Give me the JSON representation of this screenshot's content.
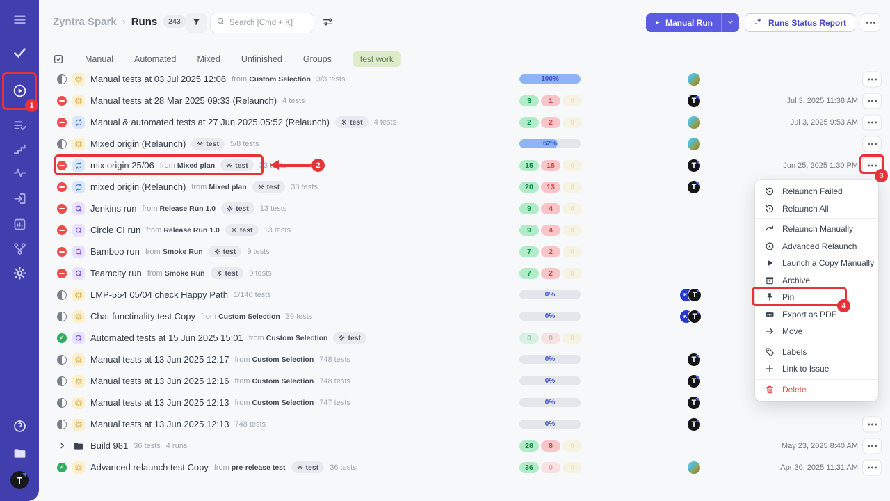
{
  "labels": {
    "from": "from"
  },
  "sidebar": {
    "icons": [
      {
        "name": "menu"
      },
      {
        "name": "check",
        "bright": true
      },
      {
        "name": "play-circle",
        "active": true
      },
      {
        "name": "checklist"
      },
      {
        "name": "steps"
      },
      {
        "name": "pulse"
      },
      {
        "name": "sign-in"
      },
      {
        "name": "bar-chart"
      },
      {
        "name": "branch"
      },
      {
        "name": "gear",
        "bright": true
      }
    ],
    "footer": [
      {
        "name": "help"
      },
      {
        "name": "folder"
      }
    ],
    "avatar_initial": "T"
  },
  "header": {
    "project": "Zyntra Spark",
    "separator": "›",
    "page": "Runs",
    "count": "243",
    "search_placeholder": "Search [Cmd + K]",
    "manual_run_label": "Manual Run",
    "report_label": "Runs Status Report"
  },
  "tabs": {
    "items": [
      "Manual",
      "Automated",
      "Mixed",
      "Unfinished",
      "Groups"
    ],
    "tag": "test work"
  },
  "rows": [
    {
      "status": "in-progress",
      "type": "manual",
      "title": "Manual tests at 03 Jul 2025 12:08",
      "from": "Custom Selection",
      "tag": "",
      "tests": "3/3 tests",
      "tests2": "",
      "progress": {
        "kind": "bar",
        "pct": 100,
        "label": "100%"
      },
      "avatars": [
        "photo"
      ],
      "time": "",
      "more": true
    },
    {
      "status": "failed",
      "type": "manual",
      "title": "Manual tests at 28 Mar 2025 09:33 (Relaunch)",
      "from": "",
      "tag": "",
      "tests": "4 tests",
      "tests2": "",
      "progress": {
        "kind": "pills",
        "values": [
          "3",
          "1",
          "0"
        ]
      },
      "avatars": [
        "T"
      ],
      "time": "Jul 3, 2025 11:38 AM",
      "more": true
    },
    {
      "status": "failed",
      "type": "mixed",
      "title": "Manual & automated tests at 27 Jun 2025 05:52 (Relaunch)",
      "from": "",
      "tag": "test",
      "tests": "4 tests",
      "tests2": "",
      "progress": {
        "kind": "pills",
        "values": [
          "2",
          "2",
          "0"
        ]
      },
      "avatars": [
        "photo"
      ],
      "time": "Jul 3, 2025 9:53 AM",
      "more": true
    },
    {
      "status": "in-progress",
      "type": "manual",
      "title": "Mixed origin (Relaunch)",
      "from": "",
      "tag": "test",
      "tests": "5/8 tests",
      "tests2": "",
      "progress": {
        "kind": "bar",
        "pct": 62,
        "label": "62%"
      },
      "avatars": [
        "photo"
      ],
      "time": "",
      "more": true
    },
    {
      "status": "failed",
      "type": "mixed",
      "title": "mix origin 25/06",
      "from": "Mixed plan",
      "tag": "test",
      "tests": "33 tests",
      "tests2": "",
      "progress": {
        "kind": "pills",
        "values": [
          "15",
          "18",
          "0"
        ]
      },
      "avatars": [
        "T"
      ],
      "time": "Jun 25, 2025 1:30 PM",
      "more": true
    },
    {
      "status": "failed",
      "type": "mixed",
      "title": "mixed origin (Relaunch)",
      "from": "Mixed plan",
      "tag": "test",
      "tests": "33 tests",
      "tests2": "",
      "progress": {
        "kind": "pills",
        "values": [
          "20",
          "13",
          "0"
        ]
      },
      "avatars": [
        "T"
      ],
      "time": "",
      "more": false
    },
    {
      "status": "failed",
      "type": "automated",
      "title": "Jenkins run",
      "from": "Release Run 1.0",
      "tag": "test",
      "tests": "13 tests",
      "tests2": "",
      "progress": {
        "kind": "pills",
        "values": [
          "9",
          "4",
          "0"
        ]
      },
      "avatars": [],
      "time": "",
      "more": false
    },
    {
      "status": "failed",
      "type": "automated",
      "title": "Circle CI run",
      "from": "Release Run 1.0",
      "tag": "test",
      "tests": "13 tests",
      "tests2": "",
      "progress": {
        "kind": "pills",
        "values": [
          "9",
          "4",
          "0"
        ]
      },
      "avatars": [],
      "time": "",
      "more": false
    },
    {
      "status": "failed",
      "type": "automated",
      "title": "Bamboo run",
      "from": "Smoke Run",
      "tag": "test",
      "tests": "9 tests",
      "tests2": "",
      "progress": {
        "kind": "pills",
        "values": [
          "7",
          "2",
          "0"
        ]
      },
      "avatars": [],
      "time": "",
      "more": false
    },
    {
      "status": "failed",
      "type": "automated",
      "title": "Teamcity run",
      "from": "Smoke Run",
      "tag": "test",
      "tests": "9 tests",
      "tests2": "",
      "progress": {
        "kind": "pills",
        "values": [
          "7",
          "2",
          "0"
        ]
      },
      "avatars": [],
      "time": "",
      "more": false
    },
    {
      "status": "in-progress",
      "type": "manual",
      "title": "LMP-554 05/04 check Happy Path",
      "from": "",
      "tag": "",
      "tests": "1/146 tests",
      "tests2": "",
      "progress": {
        "kind": "bar",
        "pct": 0,
        "label": "0%"
      },
      "avatars": [
        "KI",
        "T"
      ],
      "time": "",
      "more": false
    },
    {
      "status": "in-progress",
      "type": "manual",
      "title": "Chat functinality test Copy",
      "from": "Custom Selection",
      "tag": "",
      "tests": "39 tests",
      "tests2": "",
      "progress": {
        "kind": "bar",
        "pct": 0,
        "label": "0%"
      },
      "avatars": [
        "KI",
        "T"
      ],
      "time": "",
      "more": false
    },
    {
      "status": "passed",
      "type": "automated",
      "title": "Automated tests at 15 Jun 2025 15:01",
      "from": "Custom Selection",
      "tag": "test",
      "tests": "",
      "tests2": "",
      "progress": {
        "kind": "pills",
        "values": [
          "0",
          "0",
          "0"
        ]
      },
      "avatars": [],
      "time": "",
      "more": false
    },
    {
      "status": "in-progress",
      "type": "manual",
      "title": "Manual tests at 13 Jun 2025 12:17",
      "from": "Custom Selection",
      "tag": "",
      "tests": "748 tests",
      "tests2": "",
      "progress": {
        "kind": "bar",
        "pct": 0,
        "label": "0%"
      },
      "avatars": [
        "T"
      ],
      "time": "",
      "more": false
    },
    {
      "status": "in-progress",
      "type": "manual",
      "title": "Manual tests at 13 Jun 2025 12:16",
      "from": "Custom Selection",
      "tag": "",
      "tests": "748 tests",
      "tests2": "",
      "progress": {
        "kind": "bar",
        "pct": 0,
        "label": "0%"
      },
      "avatars": [
        "T"
      ],
      "time": "",
      "more": false
    },
    {
      "status": "in-progress",
      "type": "manual",
      "title": "Manual tests at 13 Jun 2025 12:13",
      "from": "Custom Selection",
      "tag": "",
      "tests": "747 tests",
      "tests2": "",
      "progress": {
        "kind": "bar",
        "pct": 0,
        "label": "0%"
      },
      "avatars": [
        "T"
      ],
      "time": "",
      "more": false
    },
    {
      "status": "in-progress",
      "type": "manual",
      "title": "Manual tests at 13 Jun 2025 12:13",
      "from": "",
      "tag": "",
      "tests": "748 tests",
      "tests2": "",
      "progress": {
        "kind": "bar",
        "pct": 0,
        "label": "0%"
      },
      "avatars": [
        "T"
      ],
      "time": "",
      "more": true
    },
    {
      "status": "group",
      "type": "folder",
      "title": "Build 981",
      "from": "",
      "tag": "",
      "tests": "36 tests",
      "tests2": "4 runs",
      "progress": {
        "kind": "pills",
        "values": [
          "28",
          "8",
          "0"
        ]
      },
      "avatars": [],
      "time": "May 23, 2025 8:40 AM",
      "more": true
    },
    {
      "status": "passed",
      "type": "manual",
      "title": "Advanced relaunch test Copy",
      "from": "pre-release test",
      "tag": "test",
      "tests": "36 tests",
      "tests2": "",
      "progress": {
        "kind": "pills",
        "values": [
          "36",
          "0",
          "0"
        ]
      },
      "avatars": [
        "photo"
      ],
      "time": "Apr 30, 2025 11:31 AM",
      "more": true
    }
  ],
  "menu": {
    "items": [
      {
        "icon": "relaunch-failed",
        "label": "Relaunch Failed"
      },
      {
        "icon": "relaunch-all",
        "label": "Relaunch All",
        "divider_after": true
      },
      {
        "icon": "relaunch-manually",
        "label": "Relaunch Manually"
      },
      {
        "icon": "advanced-relaunch",
        "label": "Advanced Relaunch"
      },
      {
        "icon": "launch-copy",
        "label": "Launch a Copy Manually"
      },
      {
        "icon": "archive",
        "label": "Archive"
      },
      {
        "icon": "pin",
        "label": "Pin",
        "annotated": true
      },
      {
        "icon": "export-pdf",
        "label": "Export as PDF"
      },
      {
        "icon": "move",
        "label": "Move",
        "divider_after": true
      },
      {
        "icon": "labels",
        "label": "Labels"
      },
      {
        "icon": "link-issue",
        "label": "Link to Issue",
        "divider_after": true
      },
      {
        "icon": "delete",
        "label": "Delete",
        "danger": true
      }
    ]
  },
  "annotations": {
    "step1": "1",
    "step2": "2",
    "step3": "3",
    "step4": "4"
  },
  "colors": {
    "accent": "#5b5ce2",
    "sidebar": "#413eae",
    "annotation": "#e63238",
    "pass_green": "#2fae5d",
    "fail_red": "#f14b4b",
    "bar_blue": "#8db4f5"
  }
}
